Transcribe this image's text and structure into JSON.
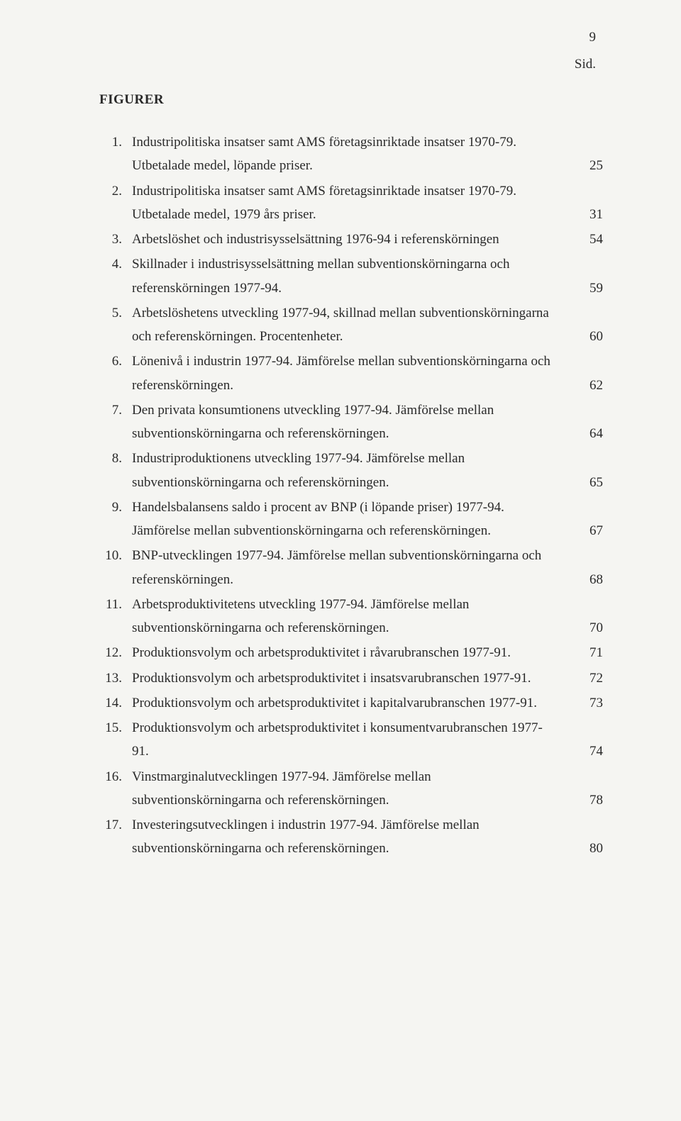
{
  "page_number": "9",
  "sid_label": "Sid.",
  "section_title": "FIGURER",
  "figures": [
    {
      "num": "1.",
      "text": "Industripolitiska insatser samt AMS företagsinriktade insatser 1970-79. Utbetalade medel, löpande priser.",
      "page": "25"
    },
    {
      "num": "2.",
      "text": "Industripolitiska insatser samt AMS företagsinriktade insatser 1970-79. Utbetalade medel, 1979 års priser.",
      "page": "31"
    },
    {
      "num": "3.",
      "text": "Arbetslöshet och industrisysselsättning 1976-94 i referenskörningen",
      "page": "54"
    },
    {
      "num": "4.",
      "text": "Skillnader i industrisysselsättning mellan subventionskörningarna och referenskörningen 1977-94.",
      "page": "59"
    },
    {
      "num": "5.",
      "text": "Arbetslöshetens utveckling 1977-94, skillnad mellan subventionskörningarna och referenskörningen. Procentenheter.",
      "page": "60"
    },
    {
      "num": "6.",
      "text": "Lönenivå i industrin 1977-94. Jämförelse mellan subventionskörningarna och referenskörningen.",
      "page": "62"
    },
    {
      "num": "7.",
      "text": "Den privata konsumtionens utveckling 1977-94. Jämförelse mellan subventionskörningarna och referenskörningen.",
      "page": "64"
    },
    {
      "num": "8.",
      "text": "Industriproduktionens utveckling 1977-94. Jämförelse mellan subventionskörningarna och referenskörningen.",
      "page": "65"
    },
    {
      "num": "9.",
      "text": "Handelsbalansens saldo i procent av BNP (i löpande priser) 1977-94. Jämförelse mellan subventionskörningarna och referenskörningen.",
      "page": "67"
    },
    {
      "num": "10.",
      "text": "BNP-utvecklingen 1977-94. Jämförelse mellan subventionskörningarna och referenskörningen.",
      "page": "68"
    },
    {
      "num": "11.",
      "text": "Arbetsproduktivitetens utveckling 1977-94. Jämförelse mellan subventionskörningarna och referenskörningen.",
      "page": "70"
    },
    {
      "num": "12.",
      "text": "Produktionsvolym och arbetsproduktivitet i råvarubranschen 1977-91.",
      "page": "71"
    },
    {
      "num": "13.",
      "text": "Produktionsvolym och arbetsproduktivitet i insatsvarubranschen 1977-91.",
      "page": "72"
    },
    {
      "num": "14.",
      "text": "Produktionsvolym och arbetsproduktivitet i kapitalvarubranschen 1977-91.",
      "page": "73"
    },
    {
      "num": "15.",
      "text": "Produktionsvolym och arbetsproduktivitet i konsumentvarubranschen 1977-91.",
      "page": "74"
    },
    {
      "num": "16.",
      "text": "Vinstmarginalutvecklingen 1977-94. Jämförelse mellan subventionskörningarna och referenskörningen.",
      "page": "78"
    },
    {
      "num": "17.",
      "text": "Investeringsutvecklingen i industrin 1977-94. Jämförelse mellan subventionskörningarna och referenskörningen.",
      "page": "80"
    }
  ]
}
